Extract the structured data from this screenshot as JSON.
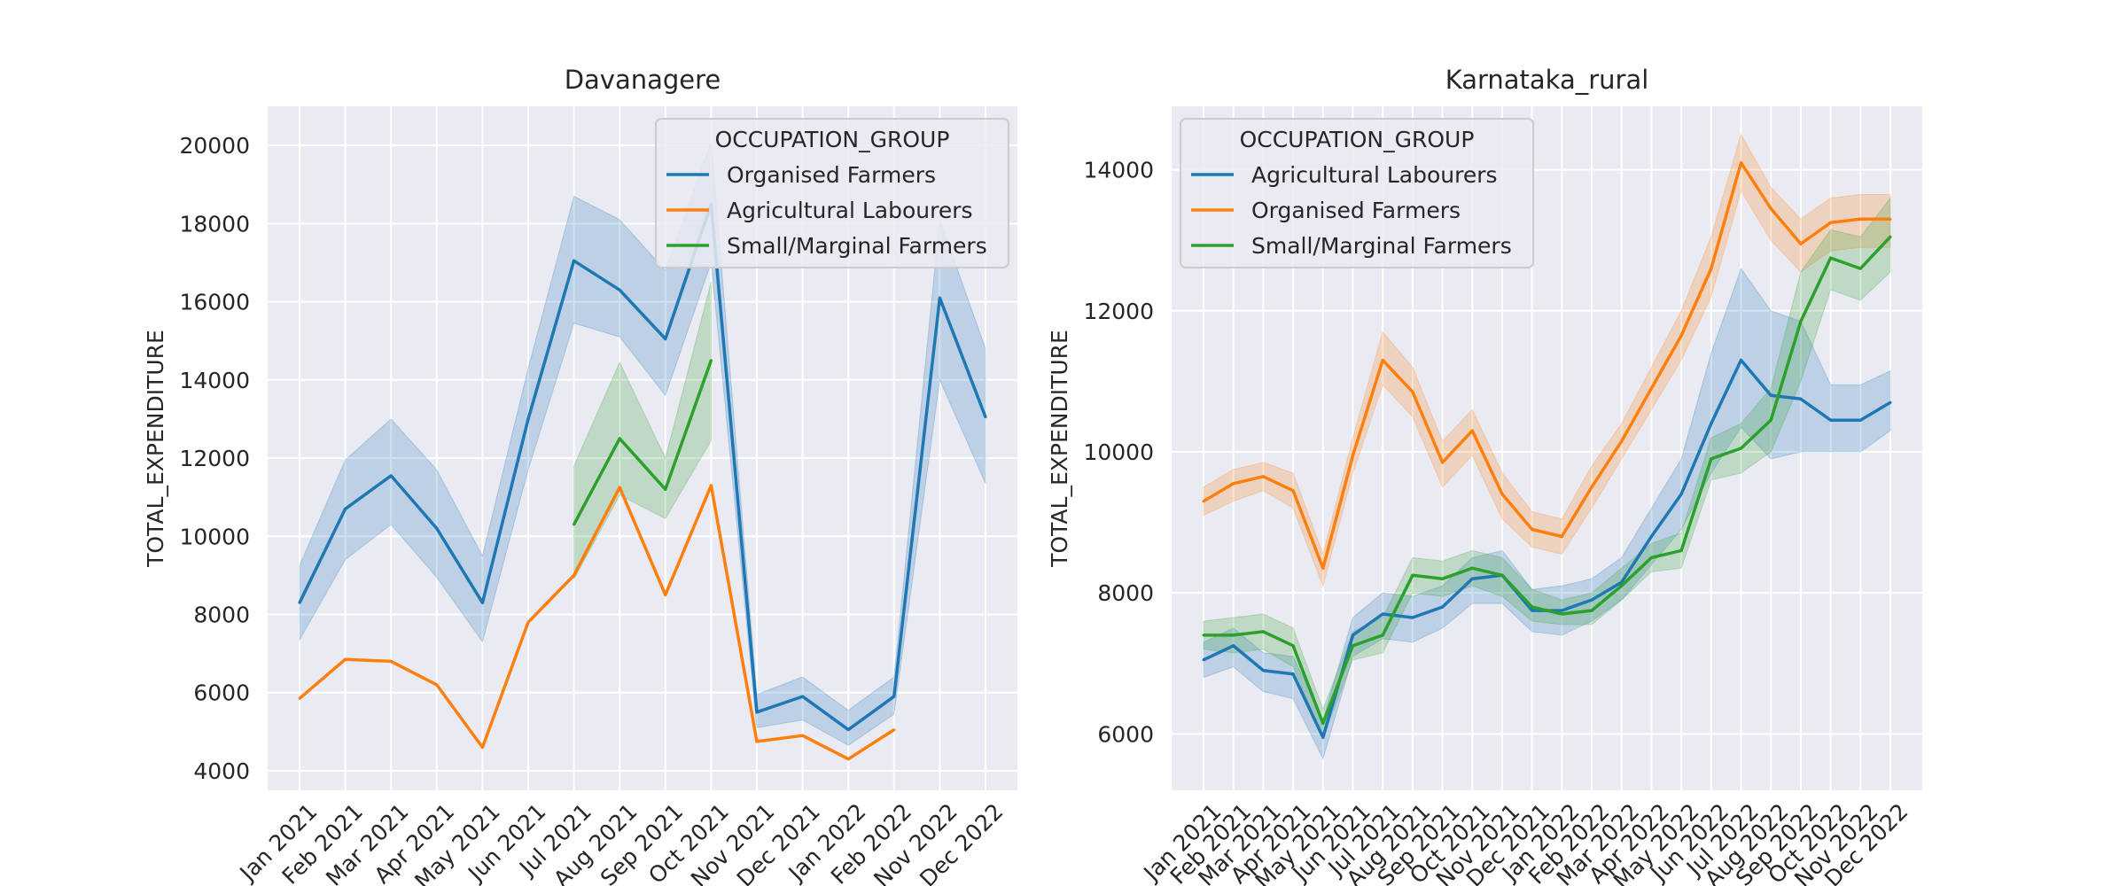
{
  "chart_data": [
    {
      "type": "line",
      "title": "Davanagere",
      "xlabel": "",
      "ylabel": "TOTAL_EXPENDITURE",
      "categories": [
        "Jan 2021",
        "Feb 2021",
        "Mar 2021",
        "Apr 2021",
        "May 2021",
        "Jun 2021",
        "Jul 2021",
        "Aug 2021",
        "Sep 2021",
        "Oct 2021",
        "Nov 2021",
        "Dec 2021",
        "Jan 2022",
        "Feb 2022",
        "Nov 2022",
        "Dec 2022"
      ],
      "ylim": [
        3500,
        21000
      ],
      "yticks": [
        4000,
        6000,
        8000,
        10000,
        12000,
        14000,
        16000,
        18000,
        20000
      ],
      "grid": true,
      "legend": {
        "title": "OCCUPATION_GROUP",
        "placement": "top-right"
      },
      "series": [
        {
          "name": "Organised Farmers",
          "color": "#1f77b4",
          "values": [
            8300,
            10700,
            11550,
            10200,
            8300,
            13000,
            17050,
            16300,
            15050,
            18500,
            5500,
            5900,
            5050,
            5900,
            16100,
            13050
          ],
          "lower": [
            7350,
            9400,
            10300,
            8950,
            7300,
            11700,
            15450,
            15100,
            13600,
            17000,
            5100,
            5300,
            4650,
            5450,
            14000,
            11350
          ],
          "upper": [
            9250,
            11950,
            13000,
            11700,
            9500,
            14300,
            18700,
            18100,
            16800,
            20100,
            5950,
            6400,
            5550,
            6400,
            18100,
            14800
          ]
        },
        {
          "name": "Agricultural Labourers",
          "color": "#ff7f0e",
          "values": [
            5850,
            6850,
            6800,
            6200,
            4600,
            7800,
            9000,
            11250,
            8500,
            11300,
            4750,
            4900,
            4300,
            5050,
            null,
            null
          ],
          "lower": null,
          "upper": null
        },
        {
          "name": "Small/Marginal Farmers",
          "color": "#2ca02c",
          "values": [
            null,
            null,
            null,
            null,
            null,
            null,
            10300,
            12500,
            11200,
            14500,
            null,
            null,
            null,
            null,
            null,
            null
          ],
          "lower": [
            null,
            null,
            null,
            null,
            null,
            null,
            8900,
            11050,
            10450,
            12450,
            null,
            null,
            null,
            null,
            null,
            null
          ],
          "upper": [
            null,
            null,
            null,
            null,
            null,
            null,
            11800,
            14450,
            12000,
            16500,
            null,
            null,
            null,
            null,
            null,
            null
          ]
        }
      ]
    },
    {
      "type": "line",
      "title": "Karnataka_rural",
      "xlabel": "",
      "ylabel": "TOTAL_EXPENDITURE",
      "categories": [
        "Jan 2021",
        "Feb 2021",
        "Mar 2021",
        "Apr 2021",
        "May 2021",
        "Jun 2021",
        "Jul 2021",
        "Aug 2021",
        "Sep 2021",
        "Oct 2021",
        "Nov 2021",
        "Dec 2021",
        "Jan 2022",
        "Feb 2022",
        "Mar 2022",
        "Apr 2022",
        "May 2022",
        "Jun 2022",
        "Jul 2022",
        "Aug 2022",
        "Sep 2022",
        "Oct 2022",
        "Nov 2022",
        "Dec 2022"
      ],
      "ylim": [
        5200,
        14900
      ],
      "yticks": [
        6000,
        8000,
        10000,
        12000,
        14000
      ],
      "grid": true,
      "legend": {
        "title": "OCCUPATION_GROUP",
        "placement": "top-left"
      },
      "series": [
        {
          "name": "Agricultural Labourers",
          "color": "#1f77b4",
          "values": [
            7050,
            7250,
            6900,
            6850,
            5950,
            7400,
            7700,
            7650,
            7800,
            8200,
            8250,
            7750,
            7750,
            7900,
            8150,
            8800,
            9400,
            10400,
            11300,
            10800,
            10750,
            10450,
            10450,
            10700
          ],
          "lower": [
            6800,
            6950,
            6600,
            6500,
            5650,
            7100,
            7350,
            7300,
            7500,
            7850,
            7850,
            7450,
            7400,
            7600,
            7900,
            8400,
            8900,
            9700,
            10350,
            9900,
            10000,
            10000,
            10000,
            10300
          ],
          "upper": [
            7300,
            7500,
            7150,
            7100,
            6200,
            7650,
            8000,
            7950,
            8100,
            8500,
            8600,
            8050,
            8100,
            8200,
            8500,
            9200,
            9900,
            11400,
            12600,
            12000,
            11850,
            10950,
            10950,
            11150
          ]
        },
        {
          "name": "Organised Farmers",
          "color": "#ff7f0e",
          "values": [
            9300,
            9550,
            9650,
            9450,
            8350,
            9950,
            11300,
            10850,
            9850,
            10300,
            9400,
            8900,
            8800,
            9500,
            10150,
            10900,
            11650,
            12600,
            14100,
            13450,
            12950,
            13250,
            13300,
            13300
          ],
          "lower": [
            9100,
            9300,
            9450,
            9200,
            8100,
            9700,
            10950,
            10500,
            9500,
            9950,
            9050,
            8650,
            8550,
            9200,
            9900,
            10600,
            11300,
            12200,
            13700,
            13000,
            12550,
            12850,
            12900,
            12900
          ],
          "upper": [
            9500,
            9750,
            9850,
            9700,
            8550,
            10200,
            11700,
            11200,
            10150,
            10600,
            9700,
            9150,
            9050,
            9800,
            10400,
            11200,
            12000,
            13050,
            14500,
            13750,
            13300,
            13600,
            13650,
            13650
          ]
        },
        {
          "name": "Small/Marginal Farmers",
          "color": "#2ca02c",
          "values": [
            7400,
            7400,
            7450,
            7250,
            6150,
            7250,
            7400,
            8250,
            8200,
            8350,
            8250,
            7800,
            7700,
            7750,
            8100,
            8500,
            8600,
            9900,
            10050,
            10450,
            11850,
            12750,
            12600,
            13050
          ],
          "lower": [
            7200,
            7150,
            7200,
            6950,
            5950,
            7050,
            7150,
            8000,
            7950,
            8100,
            7950,
            7600,
            7550,
            7550,
            7900,
            8300,
            8350,
            9600,
            9700,
            10000,
            11000,
            12300,
            12150,
            12550
          ],
          "upper": [
            7600,
            7650,
            7700,
            7500,
            6350,
            7450,
            7650,
            8500,
            8450,
            8600,
            8500,
            8050,
            7900,
            8000,
            8350,
            8700,
            8850,
            10200,
            10400,
            10900,
            12550,
            13150,
            13050,
            13600
          ]
        }
      ]
    }
  ]
}
